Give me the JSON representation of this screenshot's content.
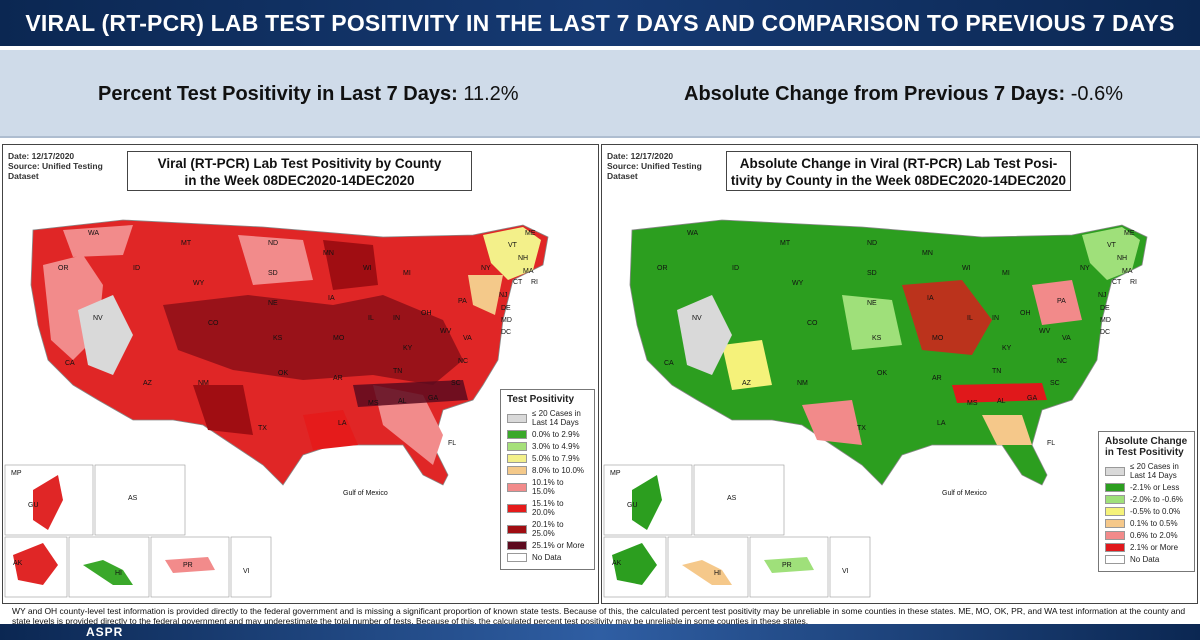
{
  "header": {
    "title": "VIRAL (RT-PCR) LAB TEST POSITIVITY IN THE LAST 7 DAYS AND COMPARISON TO PREVIOUS 7 DAYS"
  },
  "summary": {
    "positivity_label": "Percent Test Positivity in Last 7 Days:",
    "positivity_value": "11.2%",
    "change_label": "Absolute Change from Previous 7 Days:",
    "change_value": "-0.6%"
  },
  "left_panel": {
    "date": "Date: 12/17/2020",
    "source": "Source: Unified Testing Dataset",
    "title_line1": "Viral (RT-PCR) Lab Test Positivity by County",
    "title_line2": "in the Week 08DEC2020-14DEC2020",
    "legend": {
      "title": "Test Positivity",
      "items": [
        {
          "label": "≤ 20 Cases in Last 14 Days",
          "color": "#d9d9d9"
        },
        {
          "label": "0.0% to 2.9%",
          "color": "#3aa82a"
        },
        {
          "label": "3.0% to 4.9%",
          "color": "#a6e07a"
        },
        {
          "label": "5.0% to 7.9%",
          "color": "#f3f08a"
        },
        {
          "label": "8.0% to 10.0%",
          "color": "#f4c98a"
        },
        {
          "label": "10.1% to 15.0%",
          "color": "#f28b8b"
        },
        {
          "label": "15.1% to 20.0%",
          "color": "#e51b1b"
        },
        {
          "label": "20.1% to 25.0%",
          "color": "#a00d12"
        },
        {
          "label": "25.1% or More",
          "color": "#5c0a1e"
        },
        {
          "label": "No Data",
          "color": "#ffffff"
        }
      ]
    }
  },
  "right_panel": {
    "date": "Date: 12/17/2020",
    "source": "Source: Unified Testing Dataset",
    "title_line1": "Absolute Change in Viral (RT-PCR) Lab Test Posi-",
    "title_line2": "tivity by County in the Week 08DEC2020-14DEC2020",
    "legend": {
      "title": "Absolute Change in Test Positivity",
      "items": [
        {
          "label": "≤ 20 Cases in Last 14 Days",
          "color": "#d9d9d9"
        },
        {
          "label": "-2.1% or Less",
          "color": "#2c9e1f"
        },
        {
          "label": "-2.0% to -0.6%",
          "color": "#9fe07a"
        },
        {
          "label": "-0.5% to 0.0%",
          "color": "#f5f27a"
        },
        {
          "label": "0.1% to 0.5%",
          "color": "#f5c88a"
        },
        {
          "label": "0.6% to 2.0%",
          "color": "#f28a8a"
        },
        {
          "label": "2.1% or More",
          "color": "#e0181b"
        },
        {
          "label": "No Data",
          "color": "#ffffff"
        }
      ]
    }
  },
  "state_labels": [
    "WA",
    "OR",
    "CA",
    "NV",
    "ID",
    "MT",
    "WY",
    "CO",
    "AZ",
    "NM",
    "ND",
    "SD",
    "NE",
    "KS",
    "OK",
    "TX",
    "MN",
    "IA",
    "MO",
    "AR",
    "LA",
    "WI",
    "IL",
    "MI",
    "IN",
    "OH",
    "KY",
    "TN",
    "MS",
    "AL",
    "GA",
    "FL",
    "SC",
    "NC",
    "VA",
    "WV",
    "PA",
    "NY",
    "VT",
    "NH",
    "ME",
    "MA",
    "CT",
    "RI",
    "NJ",
    "DE",
    "MD",
    "DC"
  ],
  "territory_labels": [
    "MP",
    "GU",
    "AS",
    "AK",
    "HI",
    "PR",
    "VI"
  ],
  "map_water_labels": [
    "Gulf of Mexico"
  ],
  "footnote": "WY and OH county-level test information is provided directly to the federal government and is missing a significant proportion of known state tests. Because of this, the calculated percent test positivity may be unreliable in some counties in these states. ME, MO, OK, PR, and WA test information at the county and state levels is provided directly to the federal government and may underestimate the total number of tests. Because of this, the calculated percent test positivity may be unreliable in some counties in these states.",
  "footer_logo": "ASPR"
}
